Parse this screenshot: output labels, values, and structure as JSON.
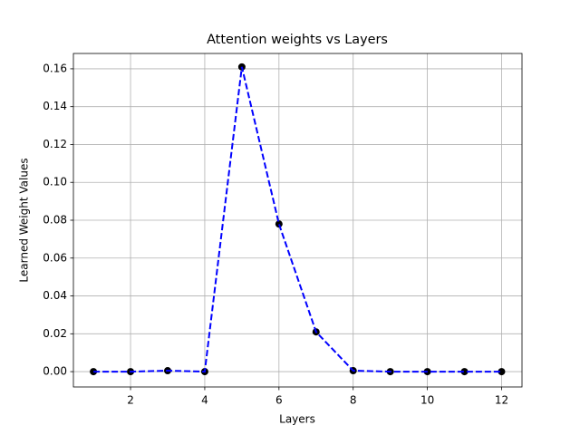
{
  "chart_data": {
    "type": "line",
    "title": "Attention weights vs Layers",
    "xlabel": "Layers",
    "ylabel": "Learned Weight Values",
    "x": [
      1,
      2,
      3,
      4,
      5,
      6,
      7,
      8,
      9,
      10,
      11,
      12
    ],
    "values": [
      0,
      0,
      0.0005,
      0,
      0.161,
      0.078,
      0.021,
      0.0005,
      0,
      0,
      0,
      0
    ],
    "color": "#0000ff",
    "marker_color": "#000000",
    "line_style": "dashed",
    "xlim": [
      0.46,
      12.55
    ],
    "xticks": [
      2,
      4,
      6,
      8,
      10,
      12
    ],
    "ylim": [
      -0.0081,
      0.1681
    ],
    "yticks": [
      {
        "value": 0,
        "label": "0.00"
      },
      {
        "value": 0.02,
        "label": "0.02"
      },
      {
        "value": 0.04,
        "label": "0.04"
      },
      {
        "value": 0.06,
        "label": "0.06"
      },
      {
        "value": 0.08,
        "label": "0.08"
      },
      {
        "value": 0.1,
        "label": "0.10"
      },
      {
        "value": 0.12,
        "label": "0.12"
      },
      {
        "value": 0.14,
        "label": "0.14"
      },
      {
        "value": 0.16,
        "label": "0.16"
      }
    ],
    "grid": true
  }
}
